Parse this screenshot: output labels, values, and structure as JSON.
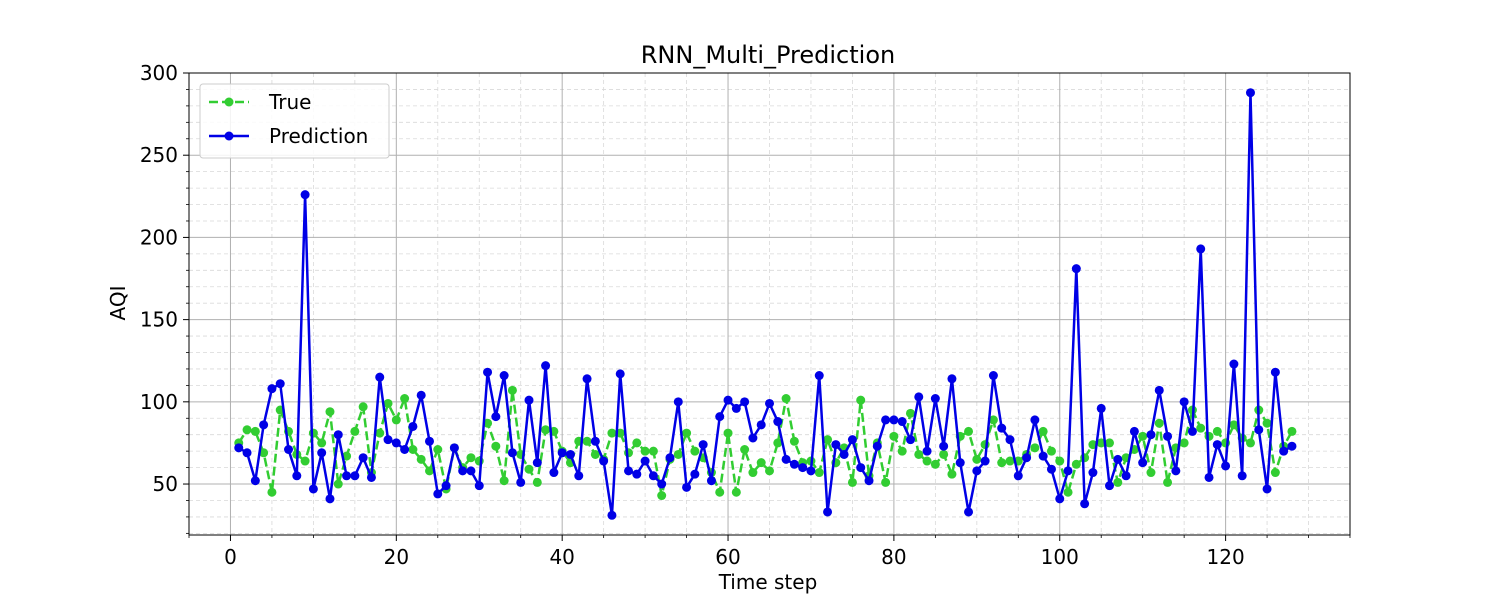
{
  "chart_data": {
    "type": "line",
    "title": "RNN_Multi_Prediction",
    "xlabel": "Time step",
    "ylabel": "AQI",
    "xlim": [
      -5,
      135
    ],
    "ylim": [
      19,
      300
    ],
    "xticks": [
      0,
      20,
      40,
      60,
      80,
      100,
      120
    ],
    "yticks": [
      50,
      100,
      150,
      200,
      250,
      300
    ],
    "grid": true,
    "minor_grid": true,
    "legend_position": "upper-left",
    "x": [
      1,
      2,
      3,
      4,
      5,
      6,
      7,
      8,
      9,
      10,
      11,
      12,
      13,
      14,
      15,
      16,
      17,
      18,
      19,
      20,
      21,
      22,
      23,
      24,
      25,
      26,
      27,
      28,
      29,
      30,
      31,
      32,
      33,
      34,
      35,
      36,
      37,
      38,
      39,
      40,
      41,
      42,
      43,
      44,
      45,
      46,
      47,
      48,
      49,
      50,
      51,
      52,
      53,
      54,
      55,
      56,
      57,
      58,
      59,
      60,
      61,
      62,
      63,
      64,
      65,
      66,
      67,
      68,
      69,
      70,
      71,
      72,
      73,
      74,
      75,
      76,
      77,
      78,
      79,
      80,
      81,
      82,
      83,
      84,
      85,
      86,
      87,
      88,
      89,
      90,
      91,
      92,
      93,
      94,
      95,
      96,
      97,
      98,
      99,
      100,
      101,
      102,
      103,
      104,
      105,
      106,
      107,
      108,
      109,
      110,
      111,
      112,
      113,
      114,
      115,
      116,
      117,
      118,
      119,
      120,
      121,
      122,
      123,
      124,
      125,
      126,
      127,
      128
    ],
    "series": [
      {
        "name": "True",
        "color": "#32cd32",
        "style": "dashed",
        "values": [
          75,
          83,
          82,
          69,
          45,
          95,
          82,
          68,
          64,
          81,
          75,
          94,
          50,
          67,
          82,
          97,
          57,
          81,
          99,
          89,
          102,
          71,
          65,
          58,
          71,
          47,
          72,
          60,
          66,
          64,
          87,
          73,
          52,
          107,
          68,
          59,
          51,
          83,
          82,
          70,
          63,
          76,
          76,
          68,
          65,
          81,
          81,
          69,
          75,
          70,
          70,
          43,
          65,
          68,
          81,
          70,
          66,
          57,
          45,
          81,
          45,
          71,
          57,
          63,
          58,
          75,
          102,
          76,
          63,
          64,
          57,
          77,
          63,
          72,
          51,
          101,
          55,
          75,
          51,
          79,
          70,
          93,
          68,
          64,
          62,
          68,
          56,
          79,
          82,
          65,
          74,
          89,
          63,
          64,
          64,
          68,
          72,
          82,
          70,
          64,
          45,
          62,
          66,
          74,
          75,
          75,
          51,
          66,
          71,
          79,
          57,
          87,
          51,
          72,
          75,
          95,
          84,
          79,
          82,
          75,
          86,
          78,
          75,
          95,
          87,
          57,
          73,
          82
        ]
      },
      {
        "name": "Prediction",
        "color": "#0000e6",
        "style": "solid",
        "values": [
          72,
          69,
          52,
          86,
          108,
          111,
          71,
          55,
          226,
          47,
          69,
          41,
          80,
          55,
          55,
          66,
          54,
          115,
          77,
          75,
          71,
          85,
          104,
          76,
          44,
          49,
          72,
          58,
          58,
          49,
          118,
          91,
          116,
          69,
          51,
          101,
          63,
          122,
          57,
          69,
          68,
          55,
          114,
          76,
          64,
          31,
          117,
          58,
          56,
          64,
          55,
          50,
          66,
          100,
          48,
          56,
          74,
          52,
          91,
          101,
          96,
          100,
          78,
          86,
          99,
          88,
          65,
          62,
          60,
          58,
          116,
          33,
          74,
          68,
          77,
          60,
          52,
          73,
          89,
          89,
          88,
          77,
          103,
          70,
          102,
          73,
          114,
          63,
          33,
          58,
          64,
          116,
          84,
          77,
          55,
          66,
          89,
          67,
          59,
          41,
          58,
          181,
          38,
          57,
          96,
          49,
          65,
          55,
          82,
          63,
          80,
          107,
          79,
          58,
          100,
          82,
          193,
          54,
          74,
          61,
          123,
          55,
          288,
          83,
          47,
          118,
          70,
          73
        ]
      }
    ]
  }
}
